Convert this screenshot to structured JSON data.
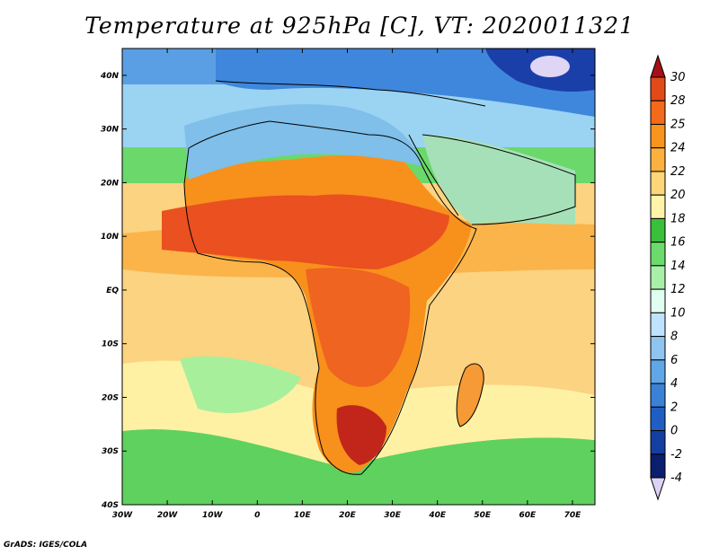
{
  "title": "Temperature at 925hPa [C], VT: 2020011321",
  "credit": "GrADS: IGES/COLA",
  "map": {
    "lon_range": [
      -30,
      75
    ],
    "lat_range": [
      -40,
      45
    ],
    "x_ticks": [
      "30W",
      "20W",
      "10W",
      "0",
      "10E",
      "20E",
      "30E",
      "40E",
      "50E",
      "60E",
      "70E"
    ],
    "y_ticks": [
      "40N",
      "30N",
      "20N",
      "10N",
      "EQ",
      "10S",
      "20S",
      "30S",
      "40S"
    ]
  },
  "colorbar": {
    "labels": [
      "30",
      "28",
      "25",
      "24",
      "22",
      "20",
      "18",
      "16",
      "14",
      "12",
      "10",
      "8",
      "6",
      "4",
      "2",
      "0",
      "-2",
      "-4"
    ],
    "colors": [
      "#a50f15",
      "#e34a1a",
      "#f26a1a",
      "#f7941d",
      "#fbb040",
      "#fdd678",
      "#fff4a8",
      "#3abf3a",
      "#6bdb6b",
      "#a8f0a8",
      "#e0fff0",
      "#bfe3ff",
      "#8ec5f0",
      "#5fa7e6",
      "#3b82d6",
      "#1f5fc4",
      "#143fa0",
      "#0a1e6e",
      "#dcd2f5"
    ]
  }
}
